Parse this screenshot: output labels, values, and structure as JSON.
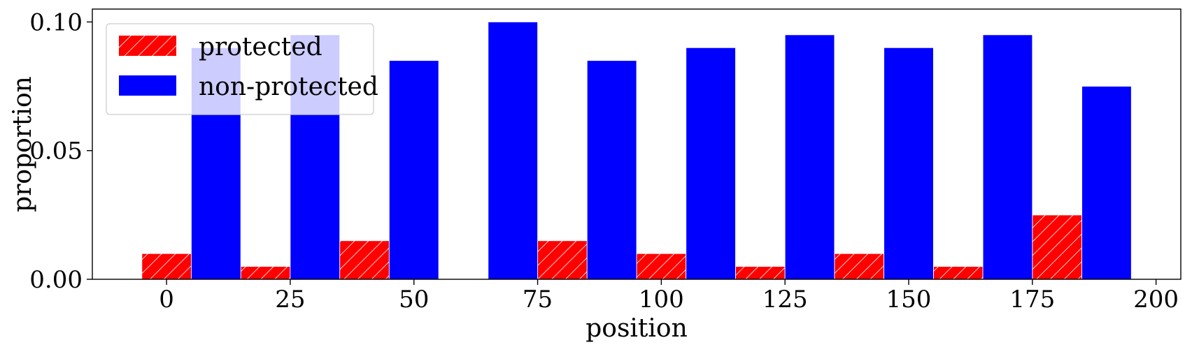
{
  "chart_data": {
    "type": "bar",
    "title": "",
    "xlabel": "position",
    "ylabel": "proportion",
    "xlim": [
      -15,
      205
    ],
    "ylim": [
      0,
      0.105
    ],
    "xticks": [
      0,
      25,
      50,
      75,
      100,
      125,
      150,
      175,
      200
    ],
    "xtick_labels": [
      "0",
      "25",
      "50",
      "75",
      "100",
      "125",
      "150",
      "175",
      "200"
    ],
    "yticks": [
      0.0,
      0.05,
      0.1
    ],
    "ytick_labels": [
      "0.00",
      "0.05",
      "0.10"
    ],
    "grid": false,
    "legend_position": "top-left",
    "bar_width": 10,
    "series": [
      {
        "name": "protected",
        "color": "#ff0000",
        "hatch": "diagonal",
        "x": [
          0,
          20,
          40,
          80,
          100,
          120,
          140,
          160,
          180
        ],
        "values": [
          0.01,
          0.005,
          0.015,
          0.015,
          0.01,
          0.005,
          0.01,
          0.005,
          0.025
        ]
      },
      {
        "name": "non-protected",
        "color": "#0000ff",
        "hatch": "none",
        "x": [
          10,
          30,
          50,
          70,
          90,
          110,
          130,
          150,
          170,
          190
        ],
        "values": [
          0.09,
          0.095,
          0.085,
          0.1,
          0.085,
          0.09,
          0.095,
          0.09,
          0.095,
          0.075
        ]
      }
    ]
  }
}
